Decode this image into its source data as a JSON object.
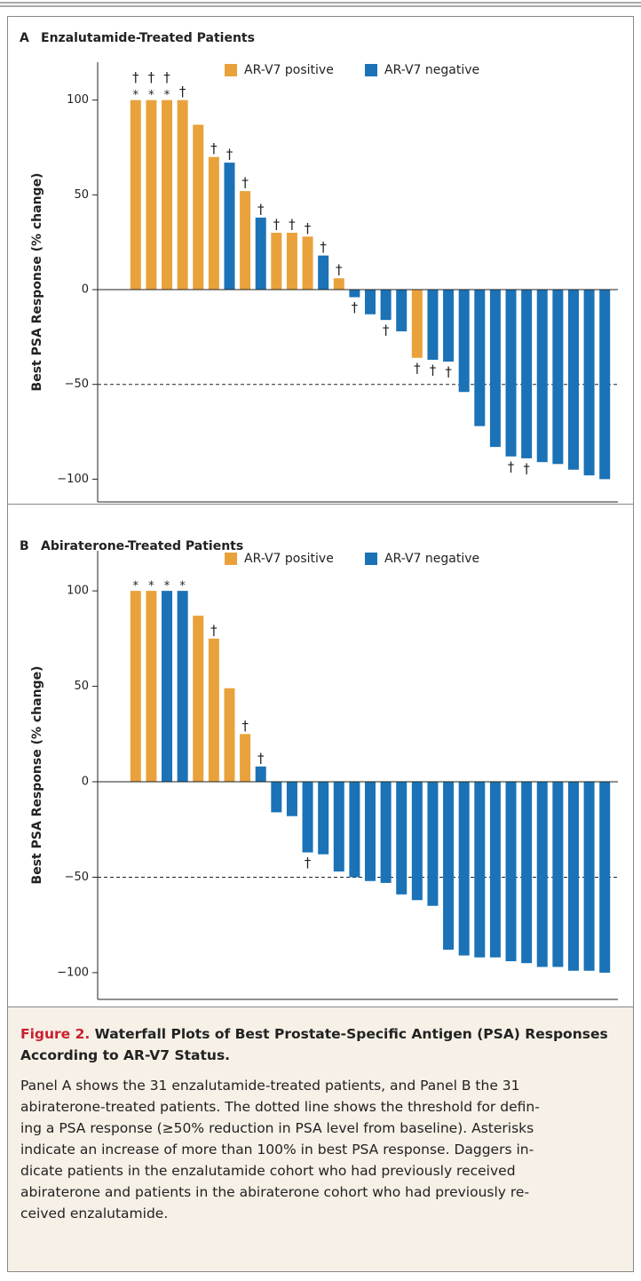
{
  "chart_data": [
    {
      "type": "bar",
      "panel_label": "A",
      "title": "Enzalutamide-Treated Patients",
      "y_label": "Best PSA Response (% change)",
      "series": [
        {
          "name": "AR-V7 positive",
          "color": "#e9a23b",
          "values": [
            100,
            100,
            100,
            100,
            87,
            70,
            null,
            52,
            null,
            30,
            30,
            28,
            null,
            6,
            null,
            null,
            null,
            null,
            -36,
            null,
            null,
            null,
            null,
            null,
            null,
            null,
            null,
            null,
            null,
            null,
            null
          ]
        },
        {
          "name": "AR-V7 negative",
          "color": "#1b72b6",
          "values": [
            null,
            null,
            null,
            null,
            null,
            null,
            67,
            null,
            38,
            null,
            null,
            null,
            18,
            null,
            -4,
            -13,
            -16,
            -22,
            null,
            -37,
            -38,
            -54,
            -72,
            -83,
            -88,
            -89,
            -91,
            -92,
            -95,
            -98,
            -100
          ]
        }
      ],
      "asterisks": [
        "*",
        "*",
        "*",
        null,
        null,
        null,
        null,
        null,
        null,
        null,
        null,
        null,
        null,
        null,
        null,
        null,
        null,
        null,
        null,
        null,
        null,
        null,
        null,
        null,
        null,
        null,
        null,
        null,
        null,
        null,
        null
      ],
      "daggers": [
        "†",
        "†",
        "†",
        "†",
        null,
        "†",
        "†",
        "†",
        "†",
        "†",
        "†",
        "†",
        "†",
        "†",
        "†",
        null,
        "†",
        null,
        "†",
        "†",
        "†",
        null,
        null,
        null,
        "†",
        "†",
        null,
        null,
        null,
        null,
        null
      ],
      "reference_line": -50,
      "ylim": [
        -112,
        120
      ],
      "yticks": [
        {
          "value": -100,
          "label": "−100"
        },
        {
          "value": -50,
          "label": "−50"
        },
        0,
        50,
        100
      ]
    },
    {
      "type": "bar",
      "panel_label": "B",
      "title": "Abiraterone-Treated Patients",
      "y_label": "Best PSA Response (% change)",
      "series": [
        {
          "name": "AR-V7 positive",
          "color": "#e9a23b",
          "values": [
            100,
            100,
            null,
            null,
            87,
            75,
            49,
            25,
            null,
            null,
            null,
            null,
            null,
            null,
            null,
            null,
            null,
            null,
            null,
            null,
            null,
            null,
            null,
            null,
            null,
            null,
            null,
            null,
            null,
            null,
            null
          ]
        },
        {
          "name": "AR-V7 negative",
          "color": "#1b72b6",
          "values": [
            null,
            null,
            100,
            100,
            null,
            null,
            null,
            null,
            8,
            -16,
            -18,
            -37,
            -38,
            -47,
            -50,
            -52,
            -53,
            -59,
            -62,
            -65,
            -88,
            -91,
            -92,
            -92,
            -94,
            -95,
            -97,
            -97,
            -99,
            -99,
            -100
          ]
        }
      ],
      "asterisks": [
        "*",
        "*",
        "*",
        "*",
        null,
        null,
        null,
        null,
        null,
        null,
        null,
        null,
        null,
        null,
        null,
        null,
        null,
        null,
        null,
        null,
        null,
        null,
        null,
        null,
        null,
        null,
        null,
        null,
        null,
        null,
        null
      ],
      "daggers": [
        null,
        null,
        null,
        null,
        null,
        "†",
        null,
        "†",
        "†",
        null,
        null,
        "†",
        null,
        null,
        null,
        null,
        null,
        null,
        null,
        null,
        null,
        null,
        null,
        null,
        null,
        null,
        null,
        null,
        null,
        null,
        null
      ],
      "reference_line": -50,
      "ylim": [
        -114,
        121
      ],
      "yticks": [
        {
          "value": -100,
          "label": "−100"
        },
        {
          "value": -50,
          "label": "−50"
        },
        0,
        50,
        100
      ]
    }
  ],
  "caption": {
    "label": "Figure 2.",
    "title_lines": [
      "Waterfall Plots of Best Prostate-Specific Antigen (PSA) Responses",
      "According to AR-V7 Status."
    ],
    "body_lines": [
      "Panel A shows the 31 enzalutamide-treated patients, and Panel B the 31",
      "abiraterone-treated patients. The dotted line shows the threshold for defin-",
      "ing a PSA response (≥50% reduction in PSA level from baseline). Asterisks",
      "indicate an increase of more than 100% in best PSA response. Daggers in-",
      "dicate patients in the enzalutamide cohort who had previously received",
      "abiraterone and patients in the abiraterone cohort who had previously re-",
      "ceived enzalutamide."
    ]
  }
}
